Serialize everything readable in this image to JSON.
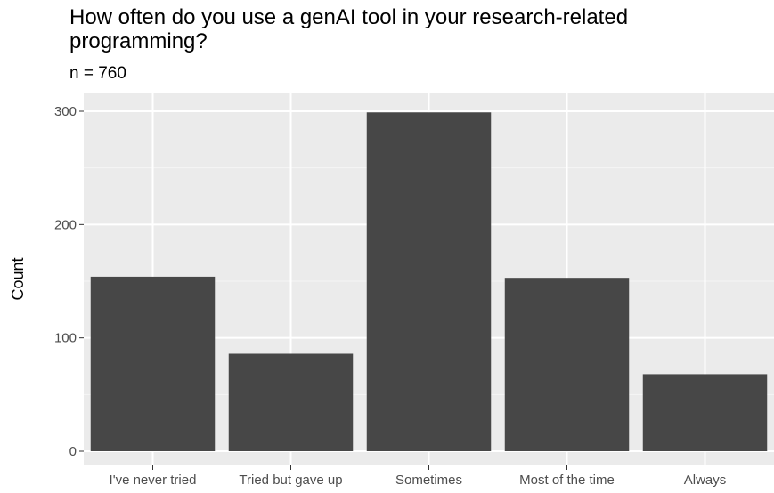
{
  "chart_data": {
    "type": "bar",
    "title": "How often do you use a genAI tool in your research-related programming?",
    "subtitle": "n = 760",
    "xlabel": "",
    "ylabel": "Count",
    "categories": [
      "I've never tried",
      "Tried but gave up",
      "Sometimes",
      "Most of the time",
      "Always"
    ],
    "values": [
      154,
      86,
      299,
      153,
      68
    ],
    "ylim": [
      0,
      315
    ],
    "yticks": [
      0,
      100,
      200,
      300
    ],
    "grid": true,
    "colors": {
      "bar": "#474747",
      "panel": "#ebebeb",
      "grid_major": "#ffffff",
      "grid_minor": "#f5f5f5",
      "tick_label": "#4d4d4d"
    }
  }
}
